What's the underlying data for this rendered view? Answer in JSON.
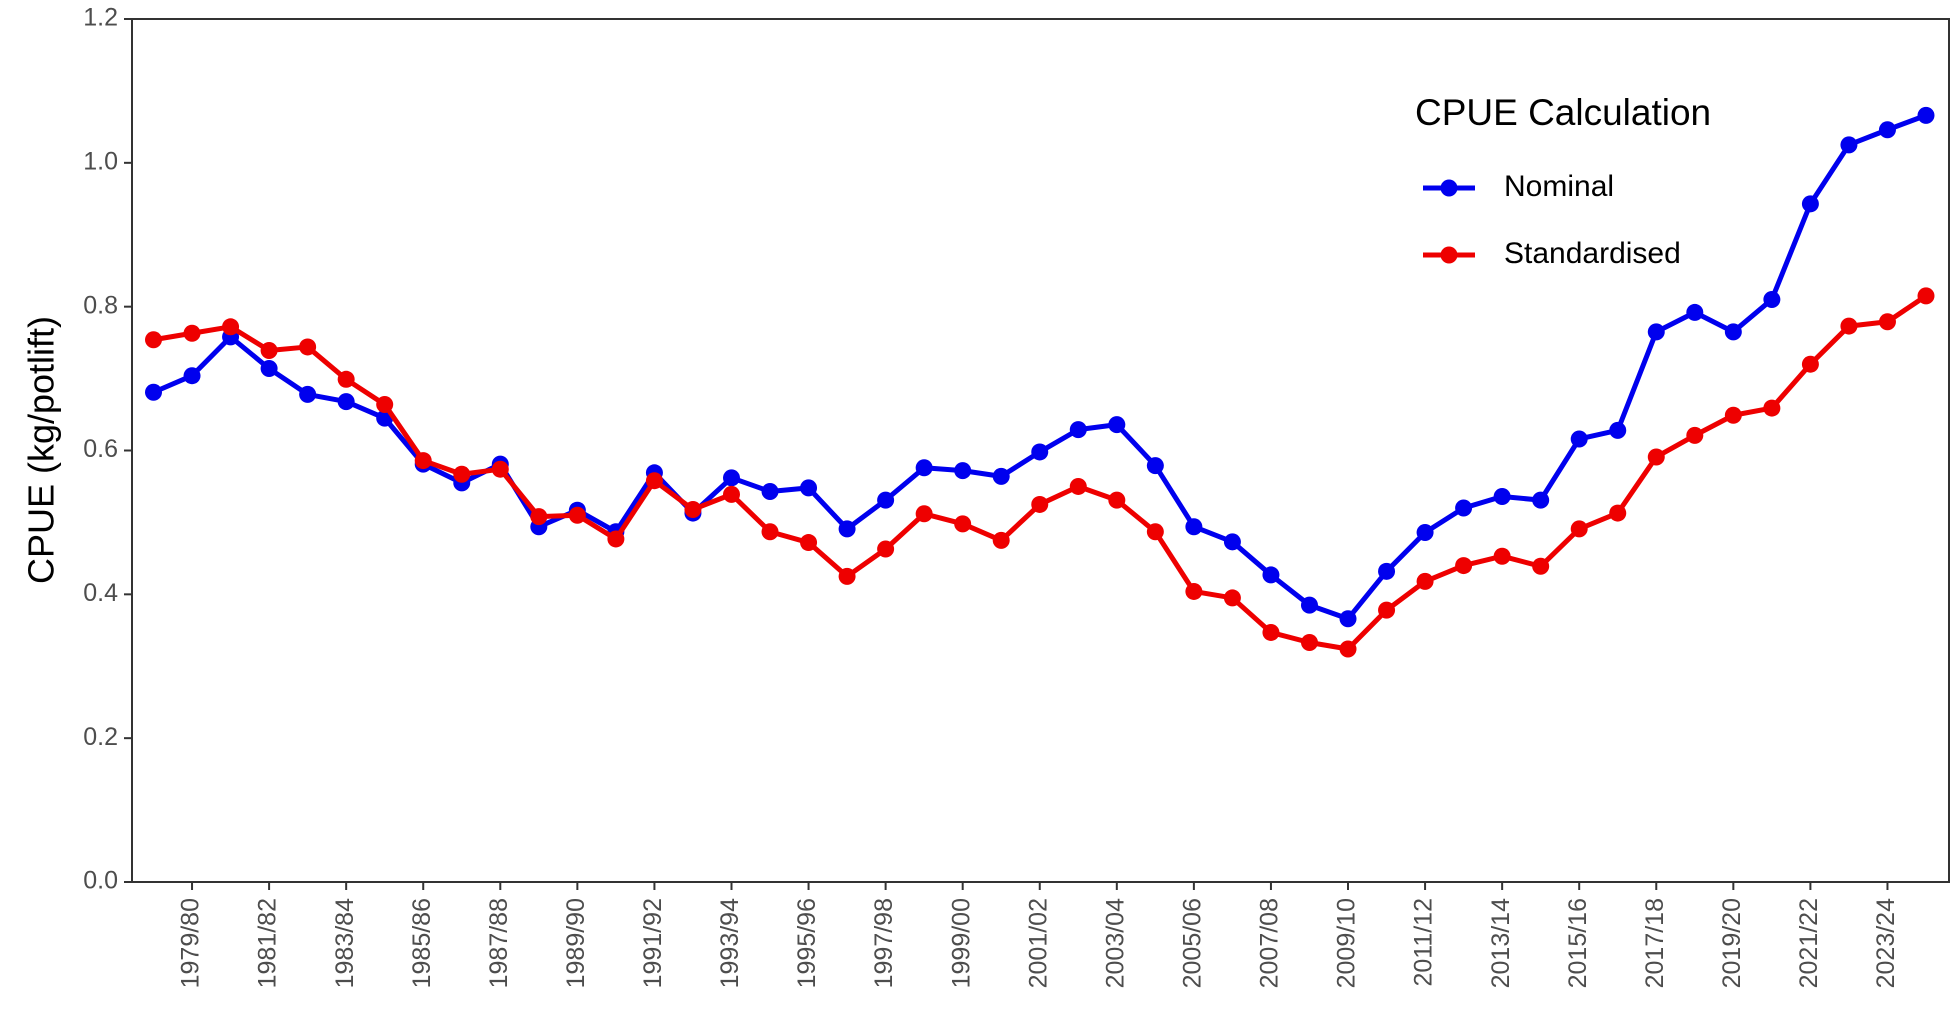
{
  "chart_data": {
    "type": "line",
    "y_label": "CPUE (kg/potlift)",
    "legend_title": "CPUE Calculation",
    "legend_position": "top-right",
    "categories": [
      null,
      "1979/80",
      null,
      "1981/82",
      null,
      "1983/84",
      null,
      "1985/86",
      null,
      "1987/88",
      null,
      "1989/90",
      null,
      "1991/92",
      null,
      "1993/94",
      null,
      "1995/96",
      null,
      "1997/98",
      null,
      "1999/00",
      null,
      "2001/02",
      null,
      "2003/04",
      null,
      "2005/06",
      null,
      "2007/08",
      null,
      "2009/10",
      null,
      "2011/12",
      null,
      "2013/14",
      null,
      "2015/16",
      null,
      "2017/18",
      null,
      "2019/20",
      null,
      "2021/22",
      null,
      "2023/24",
      null
    ],
    "series": [
      {
        "name": "Nominal",
        "color": "#0000ee",
        "values": [
          0.681,
          0.704,
          0.758,
          0.714,
          0.678,
          0.668,
          0.645,
          0.581,
          0.555,
          0.581,
          0.494,
          0.517,
          0.487,
          0.569,
          0.513,
          0.562,
          0.543,
          0.548,
          0.491,
          0.531,
          0.576,
          0.572,
          0.564,
          0.598,
          0.629,
          0.636,
          0.579,
          0.494,
          0.473,
          0.427,
          0.385,
          0.366,
          0.432,
          0.486,
          0.52,
          0.536,
          0.531,
          0.616,
          0.628,
          0.765,
          0.792,
          0.765,
          0.81,
          0.943,
          1.025,
          1.046,
          1.066
        ]
      },
      {
        "name": "Standardised",
        "color": "#ee0000",
        "values": [
          0.754,
          0.763,
          0.772,
          0.739,
          0.744,
          0.699,
          0.664,
          0.586,
          0.567,
          0.574,
          0.508,
          0.51,
          0.477,
          0.558,
          0.518,
          0.539,
          0.487,
          0.472,
          0.425,
          0.463,
          0.512,
          0.498,
          0.475,
          0.525,
          0.55,
          0.531,
          0.487,
          0.404,
          0.395,
          0.347,
          0.333,
          0.324,
          0.378,
          0.418,
          0.44,
          0.453,
          0.439,
          0.491,
          0.513,
          0.591,
          0.621,
          0.649,
          0.659,
          0.72,
          0.773,
          0.779,
          0.815
        ]
      }
    ],
    "ylim": [
      0,
      1.2
    ],
    "yticks": [
      {
        "value": 0,
        "label": "0.0"
      },
      0.2,
      0.4,
      0.6,
      0.8,
      {
        "value": 1,
        "label": "1.0"
      },
      1.2
    ],
    "grid": false
  }
}
